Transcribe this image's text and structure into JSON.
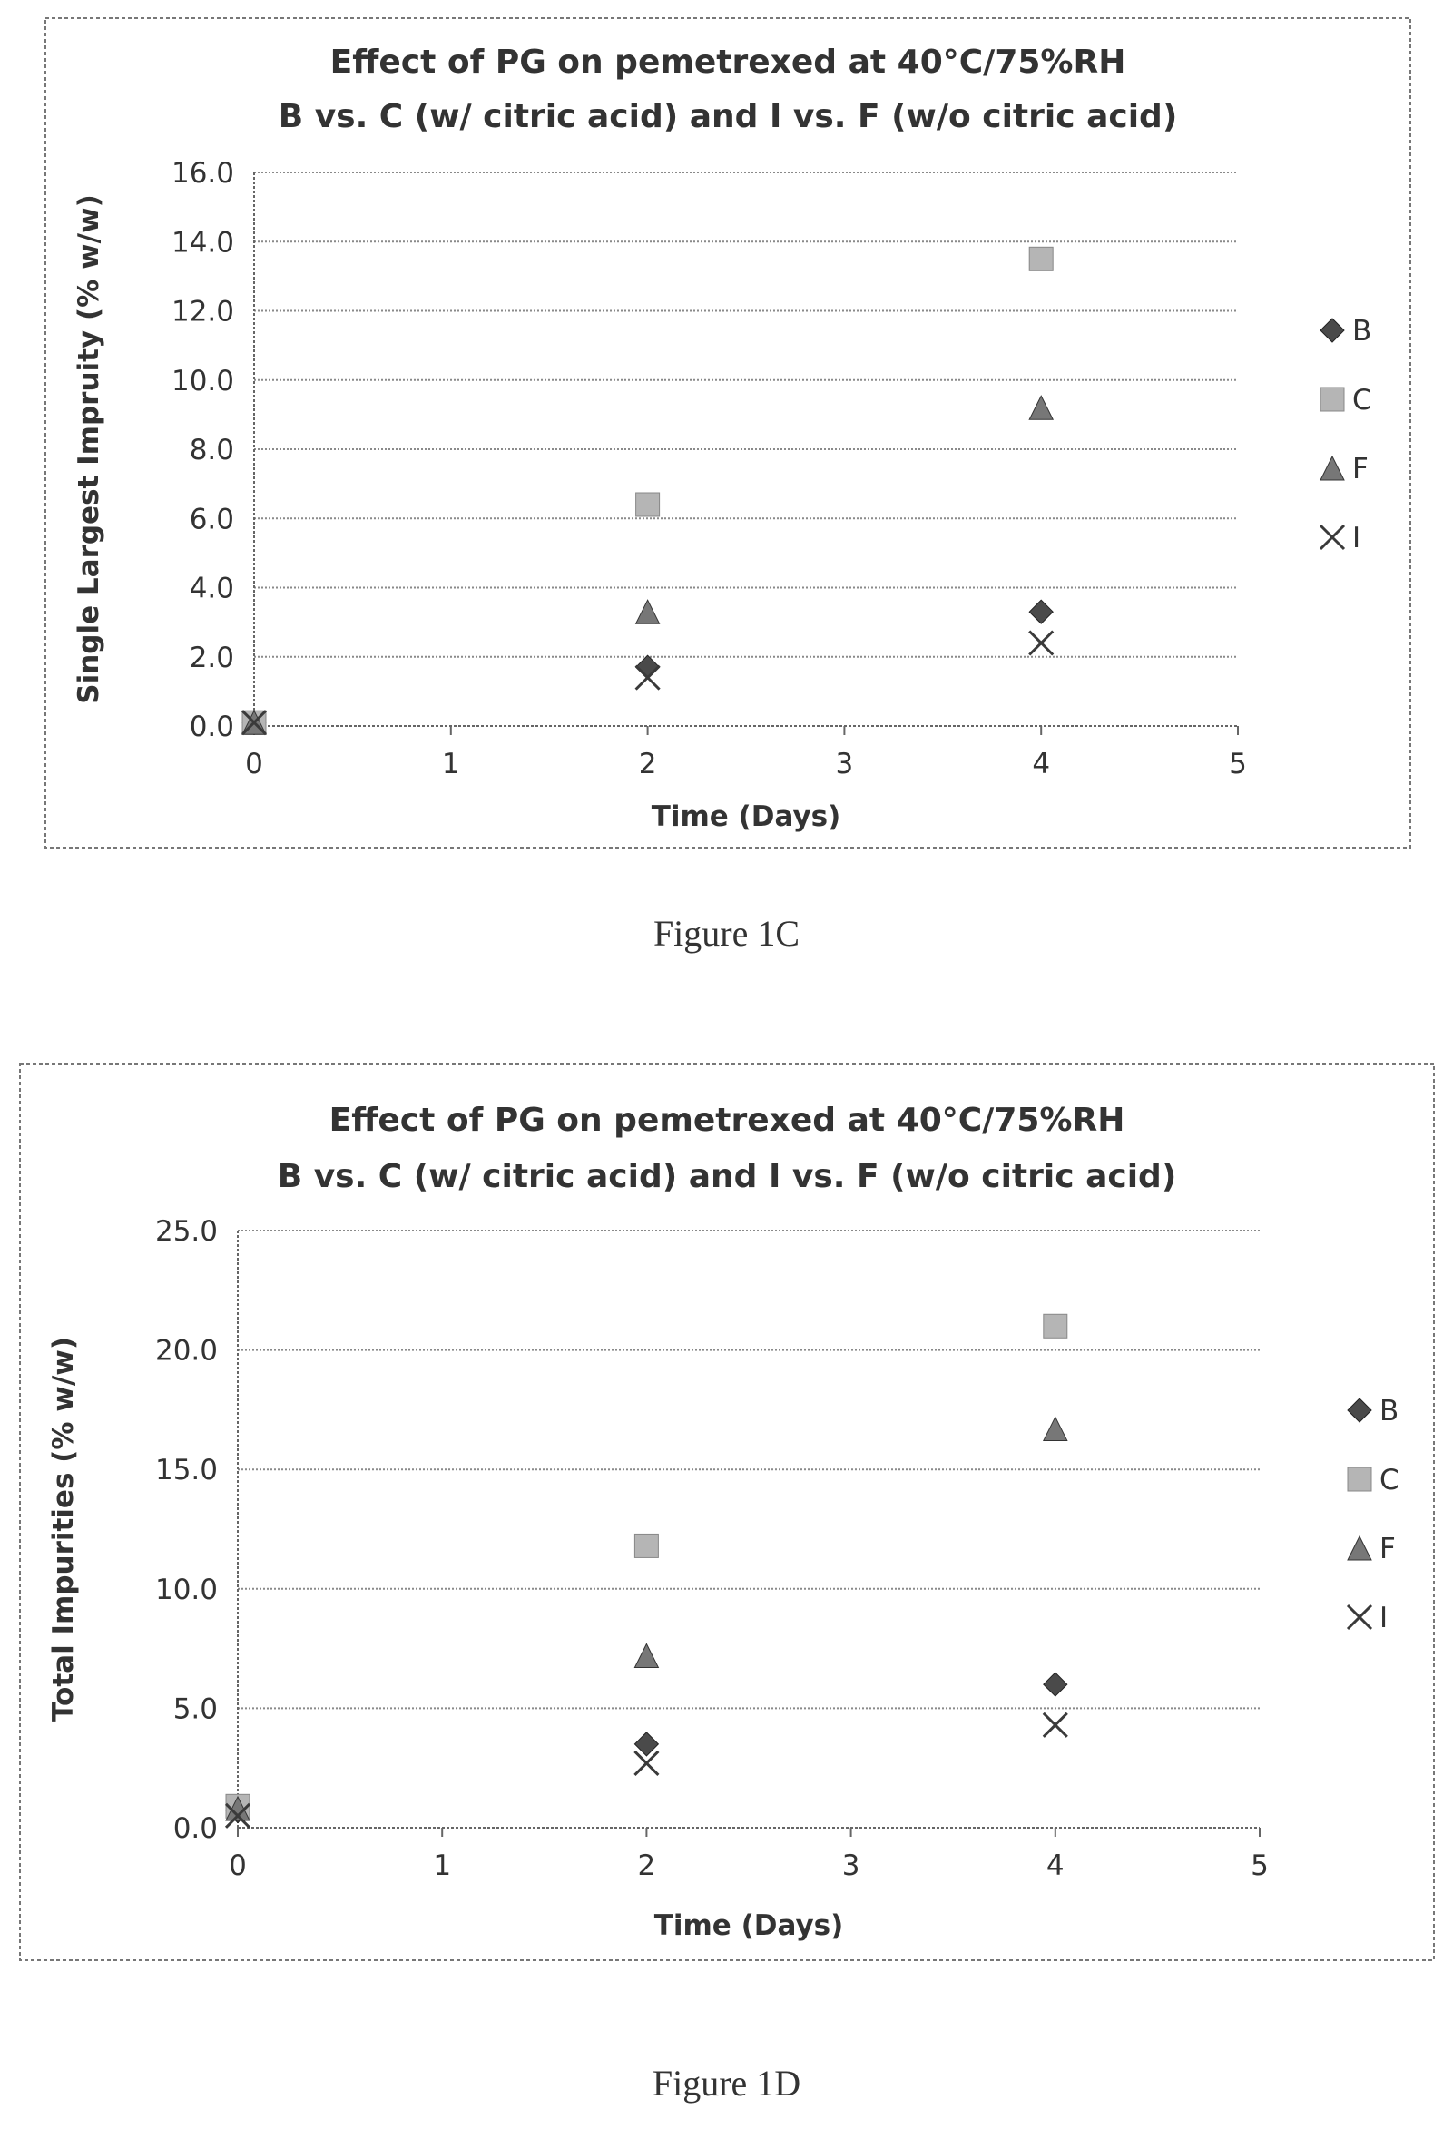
{
  "colors": {
    "frame": "#777777",
    "grid": "#8a8a8a",
    "axis": "#666666",
    "text": "#333333",
    "B": "#4a4a4a",
    "C": "#b5b5b5",
    "F": "#777777",
    "I": "#3a3a3a"
  },
  "figure_1c": {
    "caption": "Figure 1C"
  },
  "figure_1d": {
    "caption": "Figure 1D"
  },
  "chart_data": [
    {
      "type": "scatter",
      "title_line1": "Effect of PG on pemetrexed at 40°C/75%RH",
      "title_line2": "B vs. C (w/ citric acid) and I vs. F (w/o citric acid)",
      "xlabel": "Time (Days)",
      "ylabel": "Single Largest Impruity (% w/w)",
      "xlim": [
        0,
        5
      ],
      "ylim": [
        0,
        16
      ],
      "x_ticks": [
        "0",
        "1",
        "2",
        "3",
        "4",
        "5"
      ],
      "y_ticks": [
        "0.0",
        "2.0",
        "4.0",
        "6.0",
        "8.0",
        "10.0",
        "12.0",
        "14.0",
        "16.0"
      ],
      "grid": true,
      "legend_position": "right",
      "series": [
        {
          "name": "B",
          "marker": "diamond",
          "x": [
            0,
            2,
            4
          ],
          "y": [
            0.1,
            1.7,
            3.3
          ]
        },
        {
          "name": "C",
          "marker": "square",
          "x": [
            0,
            2,
            4
          ],
          "y": [
            0.1,
            6.4,
            13.5
          ]
        },
        {
          "name": "F",
          "marker": "triangle",
          "x": [
            0,
            2,
            4
          ],
          "y": [
            0.1,
            3.3,
            9.2
          ]
        },
        {
          "name": "I",
          "marker": "x",
          "x": [
            0,
            2,
            4
          ],
          "y": [
            0.1,
            1.4,
            2.4
          ]
        }
      ]
    },
    {
      "type": "scatter",
      "title_line1": "Effect of PG on pemetrexed at 40°C/75%RH",
      "title_line2": "B vs. C (w/ citric acid) and I vs. F (w/o citric acid)",
      "xlabel": "Time (Days)",
      "ylabel": "Total Impurities (% w/w)",
      "xlim": [
        0,
        5
      ],
      "ylim": [
        0,
        25
      ],
      "x_ticks": [
        "0",
        "1",
        "2",
        "3",
        "4",
        "5"
      ],
      "y_ticks": [
        "0.0",
        "5.0",
        "10.0",
        "15.0",
        "20.0",
        "25.0"
      ],
      "grid": true,
      "legend_position": "right",
      "series": [
        {
          "name": "B",
          "marker": "diamond",
          "x": [
            0,
            2,
            4
          ],
          "y": [
            0.7,
            3.5,
            6.0
          ]
        },
        {
          "name": "C",
          "marker": "square",
          "x": [
            0,
            2,
            4
          ],
          "y": [
            0.9,
            11.8,
            21.0
          ]
        },
        {
          "name": "F",
          "marker": "triangle",
          "x": [
            0,
            2,
            4
          ],
          "y": [
            0.8,
            7.2,
            16.7
          ]
        },
        {
          "name": "I",
          "marker": "x",
          "x": [
            0,
            2,
            4
          ],
          "y": [
            0.5,
            2.7,
            4.3
          ]
        }
      ]
    }
  ]
}
